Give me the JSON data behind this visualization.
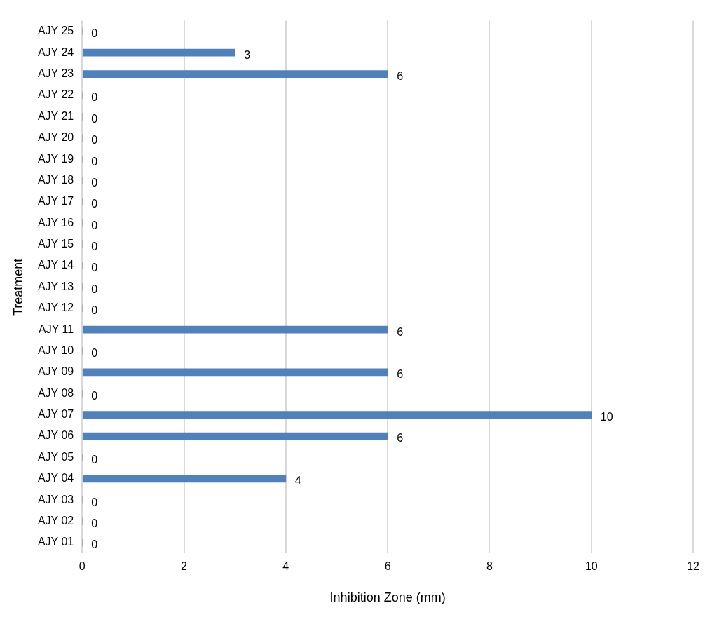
{
  "chart_data": {
    "type": "bar",
    "orientation": "horizontal",
    "xlabel": "Inhibition Zone (mm)",
    "ylabel": "Treatment",
    "categories": [
      "AJY 25",
      "AJY 24",
      "AJY 23",
      "AJY 22",
      "AJY 21",
      "AJY 20",
      "AJY 19",
      "AJY 18",
      "AJY 17",
      "AJY 16",
      "AJY 15",
      "AJY 14",
      "AJY 13",
      "AJY 12",
      "AJY 11",
      "AJY 10",
      "AJY 09",
      "AJY 08",
      "AJY 07",
      "AJY 06",
      "AJY 05",
      "AJY 04",
      "AJY 03",
      "AJY 02",
      "AJY 01"
    ],
    "values": [
      0,
      3,
      6,
      0,
      0,
      0,
      0,
      0,
      0,
      0,
      0,
      0,
      0,
      0,
      6,
      0,
      6,
      0,
      10,
      6,
      0,
      4,
      0,
      0,
      0
    ],
    "color": "#4f81bd",
    "xlim": [
      0,
      12
    ],
    "xticks": [
      0,
      2,
      4,
      6,
      8,
      10,
      12
    ],
    "grid": "x",
    "data_labels": true,
    "legend": false
  }
}
